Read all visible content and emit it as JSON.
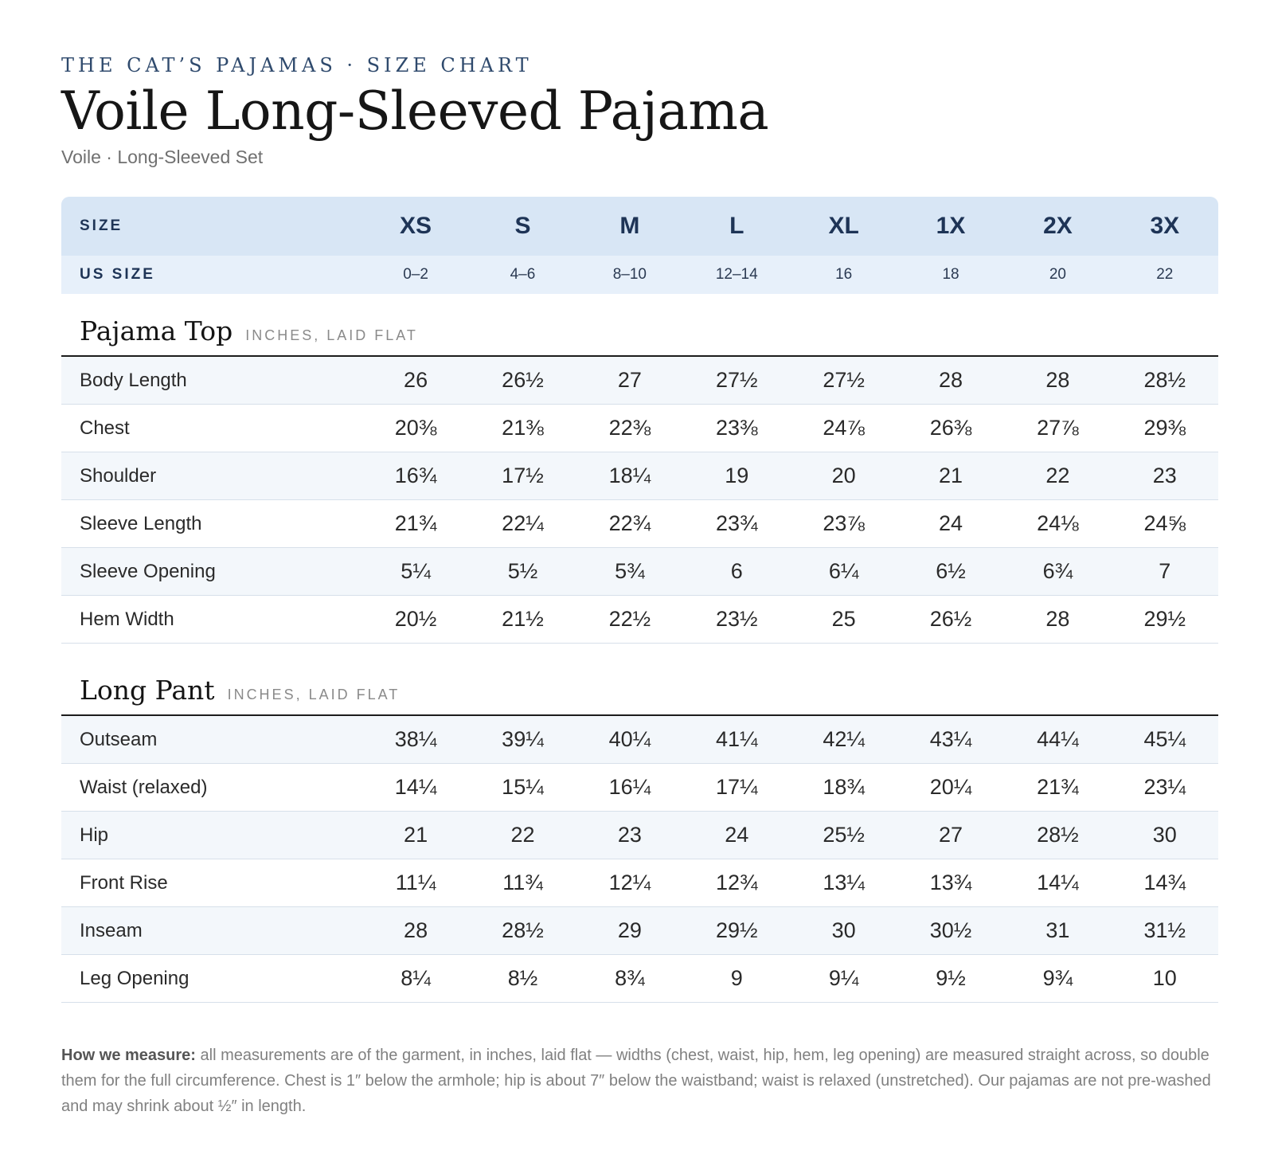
{
  "header": {
    "brand": "THE CAT’S PAJAMAS · SIZE CHART",
    "title": "Voile Long-Sleeved Pajama",
    "subtitle": "Voile · Long-Sleeved Set"
  },
  "sizes": {
    "label": "SIZE",
    "values": [
      "XS",
      "S",
      "M",
      "L",
      "XL",
      "1X",
      "2X",
      "3X"
    ]
  },
  "us_sizes": {
    "label": "US SIZE",
    "values": [
      "0–2",
      "4–6",
      "8–10",
      "12–14",
      "16",
      "18",
      "20",
      "22"
    ]
  },
  "pajama_top": {
    "title": "Pajama Top",
    "unit": "INCHES, LAID FLAT",
    "rows": [
      {
        "label": "Body Length",
        "values": [
          "26",
          "26½",
          "27",
          "27½",
          "27½",
          "28",
          "28",
          "28½"
        ]
      },
      {
        "label": "Chest",
        "values": [
          "20⅜",
          "21⅜",
          "22⅜",
          "23⅜",
          "24⅞",
          "26⅜",
          "27⅞",
          "29⅜"
        ]
      },
      {
        "label": "Shoulder",
        "values": [
          "16¾",
          "17½",
          "18¼",
          "19",
          "20",
          "21",
          "22",
          "23"
        ]
      },
      {
        "label": "Sleeve Length",
        "values": [
          "21¾",
          "22¼",
          "22¾",
          "23¾",
          "23⅞",
          "24",
          "24⅛",
          "24⅝"
        ]
      },
      {
        "label": "Sleeve Opening",
        "values": [
          "5¼",
          "5½",
          "5¾",
          "6",
          "6¼",
          "6½",
          "6¾",
          "7"
        ]
      },
      {
        "label": "Hem Width",
        "values": [
          "20½",
          "21½",
          "22½",
          "23½",
          "25",
          "26½",
          "28",
          "29½"
        ]
      }
    ]
  },
  "long_pant": {
    "title": "Long Pant",
    "unit": "INCHES, LAID FLAT",
    "rows": [
      {
        "label": "Outseam",
        "values": [
          "38¼",
          "39¼",
          "40¼",
          "41¼",
          "42¼",
          "43¼",
          "44¼",
          "45¼"
        ]
      },
      {
        "label": "Waist (relaxed)",
        "values": [
          "14¼",
          "15¼",
          "16¼",
          "17¼",
          "18¾",
          "20¼",
          "21¾",
          "23¼"
        ]
      },
      {
        "label": "Hip",
        "values": [
          "21",
          "22",
          "23",
          "24",
          "25½",
          "27",
          "28½",
          "30"
        ]
      },
      {
        "label": "Front Rise",
        "values": [
          "11¼",
          "11¾",
          "12¼",
          "12¾",
          "13¼",
          "13¾",
          "14¼",
          "14¾"
        ]
      },
      {
        "label": "Inseam",
        "values": [
          "28",
          "28½",
          "29",
          "29½",
          "30",
          "30½",
          "31",
          "31½"
        ]
      },
      {
        "label": "Leg Opening",
        "values": [
          "8¼",
          "8½",
          "8¾",
          "9",
          "9¼",
          "9½",
          "9¾",
          "10"
        ]
      }
    ]
  },
  "note": {
    "lead": "How we measure:",
    "text": " all measurements are of the garment, in inches, laid flat — widths (chest, waist, hip, hem, leg opening) are measured straight across, so double them for the full circumference. Chest is 1″ below the armhole; hip is about 7″ below the waistband; waist is relaxed (unstretched). Our pajamas are not pre-washed and may shrink about ½″ in length."
  }
}
